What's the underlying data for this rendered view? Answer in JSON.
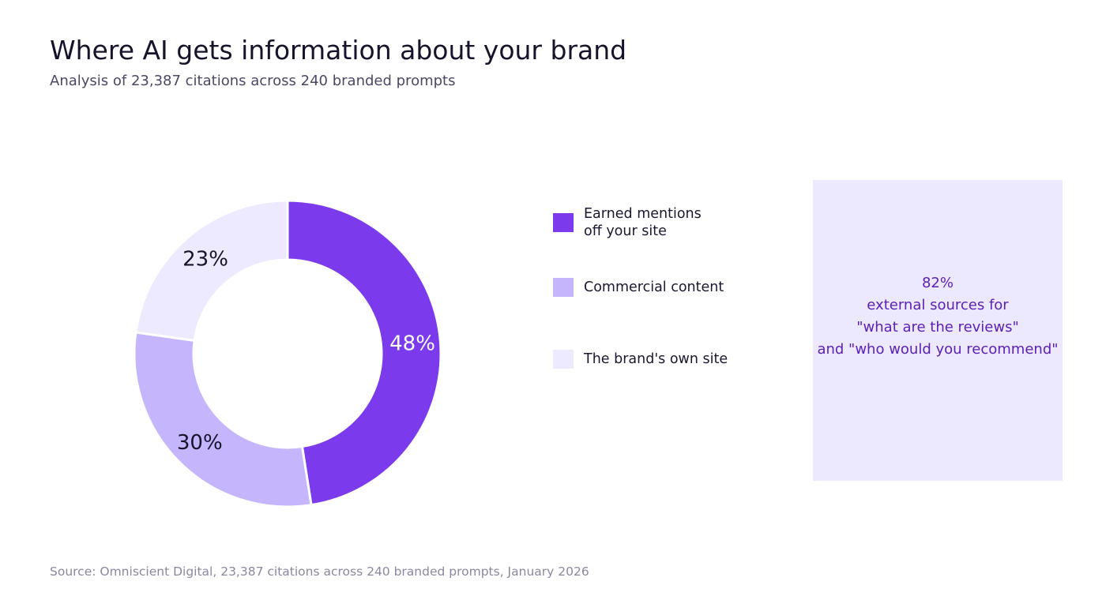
{
  "title": "Where AI gets information about your brand",
  "subtitle": "Analysis of 23,387 citations across 240 branded prompts",
  "chart_data": {
    "type": "pie",
    "categories": [
      "Earned mentions\noff your site",
      "Commercial content",
      "The brand's own site"
    ],
    "values": [
      48,
      30,
      23
    ],
    "value_labels": [
      "48%",
      "30%",
      "23%"
    ],
    "colors": [
      "#7c3aed",
      "#c4b5fd",
      "#ede9fe"
    ],
    "label_colors": [
      "#ffffff",
      "#16142b",
      "#16142b"
    ],
    "legend_position": "right"
  },
  "callout": {
    "text": "82%\nexternal sources for\n\"what are the reviews\"\nand \"who would you recommend\""
  },
  "source": "Source: Omniscient Digital, 23,387 citations across 240 branded prompts, January 2026"
}
